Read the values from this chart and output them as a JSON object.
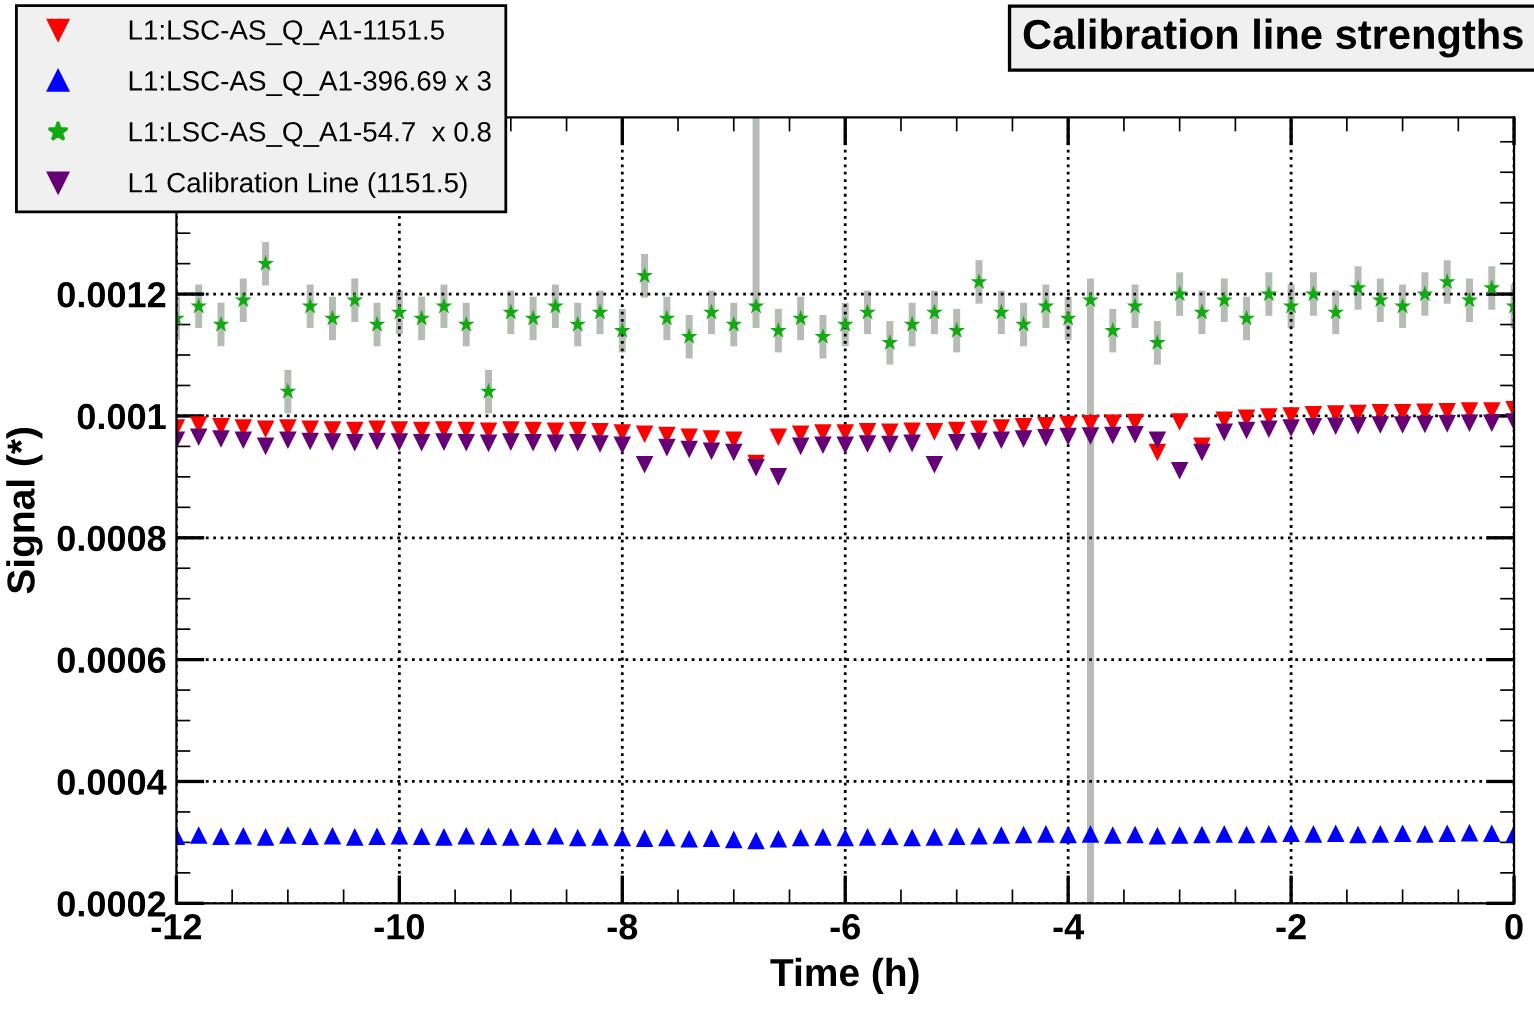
{
  "chart_data": {
    "type": "scatter",
    "title": "Calibration line strengths",
    "xlabel": "Time (h)",
    "ylabel": "Signal (*)",
    "xlim": [
      -12,
      0
    ],
    "ylim": [
      0.0002,
      0.00149
    ],
    "xticks": [
      -12,
      -10,
      -8,
      -6,
      -4,
      -2,
      0
    ],
    "yticks": [
      0.0002,
      0.0004,
      0.0006,
      0.0008,
      0.001,
      0.0012
    ],
    "grid": true,
    "legend": "top left",
    "x": [
      -12,
      -11.8,
      -11.6,
      -11.4,
      -11.2,
      -11,
      -10.8,
      -10.6,
      -10.4,
      -10.2,
      -10,
      -9.8,
      -9.6,
      -9.4,
      -9.2,
      -9,
      -8.8,
      -8.6,
      -8.4,
      -8.2,
      -8,
      -7.8,
      -7.6,
      -7.4,
      -7.2,
      -7,
      -6.8,
      -6.6,
      -6.4,
      -6.2,
      -6,
      -5.8,
      -5.6,
      -5.4,
      -5.2,
      -5,
      -4.8,
      -4.6,
      -4.4,
      -4.2,
      -4,
      -3.8,
      -3.6,
      -3.4,
      -3.2,
      -3,
      -2.8,
      -2.6,
      -2.4,
      -2.2,
      -2,
      -1.8,
      -1.6,
      -1.4,
      -1.2,
      -1,
      -0.8,
      -0.6,
      -0.4,
      -0.2,
      0
    ],
    "series": [
      {
        "name": "L1:LSC-AS_Q_A1-1151.5",
        "color": "#ff0000",
        "marker": "triangle_down",
        "values": [
          0.00098,
          0.000985,
          0.000982,
          0.00098,
          0.000978,
          0.00098,
          0.000978,
          0.000977,
          0.000976,
          0.000978,
          0.000977,
          0.000976,
          0.000977,
          0.000976,
          0.000975,
          0.000977,
          0.000976,
          0.000975,
          0.000976,
          0.000974,
          0.000972,
          0.00097,
          0.000968,
          0.000965,
          0.000962,
          0.00096,
          0.000922,
          0.000965,
          0.00097,
          0.000972,
          0.000972,
          0.000974,
          0.000973,
          0.000975,
          0.000974,
          0.000976,
          0.000978,
          0.00098,
          0.000982,
          0.000984,
          0.000986,
          0.000987,
          0.000988,
          0.000989,
          0.00094,
          0.00099,
          0.00095,
          0.000993,
          0.000996,
          0.000998,
          0.001,
          0.001002,
          0.001003,
          0.001004,
          0.001005,
          0.001005,
          0.001006,
          0.001007,
          0.001008,
          0.001008,
          0.00101
        ]
      },
      {
        "name": "L1:LSC-AS_Q_A1-396.69 x 3",
        "color": "#0000ff",
        "marker": "triangle_up",
        "values": [
          0.00031,
          0.000312,
          0.00031,
          0.000311,
          0.000309,
          0.000312,
          0.00031,
          0.000311,
          0.000309,
          0.00031,
          0.000311,
          0.00031,
          0.000309,
          0.000311,
          0.00031,
          0.000309,
          0.00031,
          0.000311,
          0.000308,
          0.000309,
          0.000308,
          0.000307,
          0.000308,
          0.000306,
          0.000307,
          0.000305,
          0.000303,
          0.000306,
          0.000308,
          0.000309,
          0.000308,
          0.000309,
          0.00031,
          0.000308,
          0.000309,
          0.00031,
          0.000311,
          0.000312,
          0.000313,
          0.000314,
          0.000313,
          0.000314,
          0.000312,
          0.000313,
          0.000311,
          0.000312,
          0.000313,
          0.000314,
          0.000313,
          0.000314,
          0.000315,
          0.000314,
          0.000315,
          0.000313,
          0.000314,
          0.000315,
          0.000314,
          0.000315,
          0.000316,
          0.000315,
          0.000314
        ]
      },
      {
        "name": "L1:LSC-AS_Q_A1-54.7  x 0.8",
        "color": "#11aa11",
        "marker": "star",
        "values": [
          0.00116,
          0.00118,
          0.00115,
          0.00119,
          0.00125,
          0.00104,
          0.00118,
          0.00116,
          0.00119,
          0.00115,
          0.00117,
          0.00116,
          0.00118,
          0.00115,
          0.00104,
          0.00117,
          0.00116,
          0.00118,
          0.00115,
          0.00117,
          0.00114,
          0.00123,
          0.00116,
          0.00113,
          0.00117,
          0.00115,
          0.00118,
          0.00114,
          0.00116,
          0.00113,
          0.00115,
          0.00117,
          0.00112,
          0.00115,
          0.00117,
          0.00114,
          0.00122,
          0.00117,
          0.00115,
          0.00118,
          0.00116,
          0.00119,
          0.00114,
          0.00118,
          0.00112,
          0.0012,
          0.00117,
          0.00119,
          0.00116,
          0.0012,
          0.00118,
          0.0012,
          0.00117,
          0.00121,
          0.00119,
          0.00118,
          0.0012,
          0.00122,
          0.00119,
          0.00121,
          0.00118
        ],
        "errors": [
          3e-05,
          3e-05,
          3e-05,
          3e-05,
          3e-05,
          3e-05,
          3e-05,
          3e-05,
          3e-05,
          3e-05,
          3e-05,
          3e-05,
          3e-05,
          3e-05,
          3e-05,
          3e-05,
          3e-05,
          3e-05,
          3e-05,
          3e-05,
          3e-05,
          3e-05,
          3e-05,
          3e-05,
          3e-05,
          3e-05,
          [
            0.00115,
            0.00149
          ],
          3e-05,
          3e-05,
          3e-05,
          3e-05,
          3e-05,
          3e-05,
          3e-05,
          3e-05,
          3e-05,
          3e-05,
          3e-05,
          3e-05,
          3e-05,
          3e-05,
          [
            0.0002,
            0.00122
          ],
          3e-05,
          3e-05,
          3e-05,
          3e-05,
          3e-05,
          3e-05,
          3e-05,
          3e-05,
          3e-05,
          3e-05,
          3e-05,
          3e-05,
          3e-05,
          3e-05,
          3e-05,
          3e-05,
          3e-05,
          3e-05,
          3e-05
        ]
      },
      {
        "name": "L1 Calibration Line (1151.5)",
        "color": "#660077",
        "marker": "triangle_down",
        "values": [
          0.00096,
          0.000965,
          0.000962,
          0.00096,
          0.00095,
          0.00096,
          0.000958,
          0.000957,
          0.000956,
          0.000958,
          0.000957,
          0.000956,
          0.000957,
          0.000956,
          0.000955,
          0.000957,
          0.000956,
          0.000955,
          0.000956,
          0.000954,
          0.000952,
          0.00092,
          0.000948,
          0.000945,
          0.000942,
          0.00094,
          0.000915,
          0.0009,
          0.00095,
          0.000952,
          0.000952,
          0.000954,
          0.000953,
          0.000955,
          0.00092,
          0.000956,
          0.000958,
          0.00096,
          0.000962,
          0.000964,
          0.000966,
          0.000967,
          0.000968,
          0.000969,
          0.00096,
          0.00091,
          0.00094,
          0.000973,
          0.000976,
          0.000978,
          0.00098,
          0.000982,
          0.000983,
          0.000984,
          0.000985,
          0.000985,
          0.000986,
          0.000987,
          0.000988,
          0.000988,
          0.00099
        ]
      }
    ]
  }
}
